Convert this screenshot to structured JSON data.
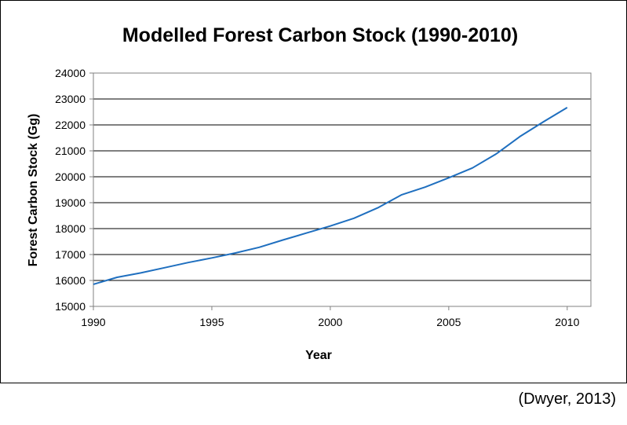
{
  "chart_data": {
    "type": "line",
    "title": "Modelled Forest Carbon Stock (1990-2010)",
    "xlabel": "Year",
    "ylabel": "Forest Carbon Stock (Gg)",
    "xlim": [
      1990,
      2011
    ],
    "ylim": [
      15000,
      24000
    ],
    "xticks": [
      1990,
      1995,
      2000,
      2005,
      2010
    ],
    "xtick_labels": [
      "1990",
      "1995",
      "2000",
      "2005",
      "2010"
    ],
    "yticks": [
      15000,
      16000,
      17000,
      18000,
      19000,
      20000,
      21000,
      22000,
      23000,
      24000
    ],
    "ytick_labels": [
      "15000",
      "16000",
      "17000",
      "18000",
      "19000",
      "20000",
      "21000",
      "22000",
      "23000",
      "24000"
    ],
    "grid": "horizontal",
    "series": [
      {
        "color": "#1f6fbf",
        "x": [
          1990,
          1991,
          1992,
          1993,
          1994,
          1995,
          1996,
          1997,
          1998,
          1999,
          2000,
          2001,
          2002,
          2003,
          2004,
          2005,
          2006,
          2007,
          2008,
          2009,
          2010
        ],
        "y": [
          15850,
          16120,
          16290,
          16490,
          16690,
          16870,
          17060,
          17280,
          17560,
          17830,
          18100,
          18400,
          18800,
          19300,
          19600,
          19960,
          20340,
          20880,
          21550,
          22120,
          22670
        ]
      }
    ]
  },
  "source_note": "(Dwyer, 2013)"
}
